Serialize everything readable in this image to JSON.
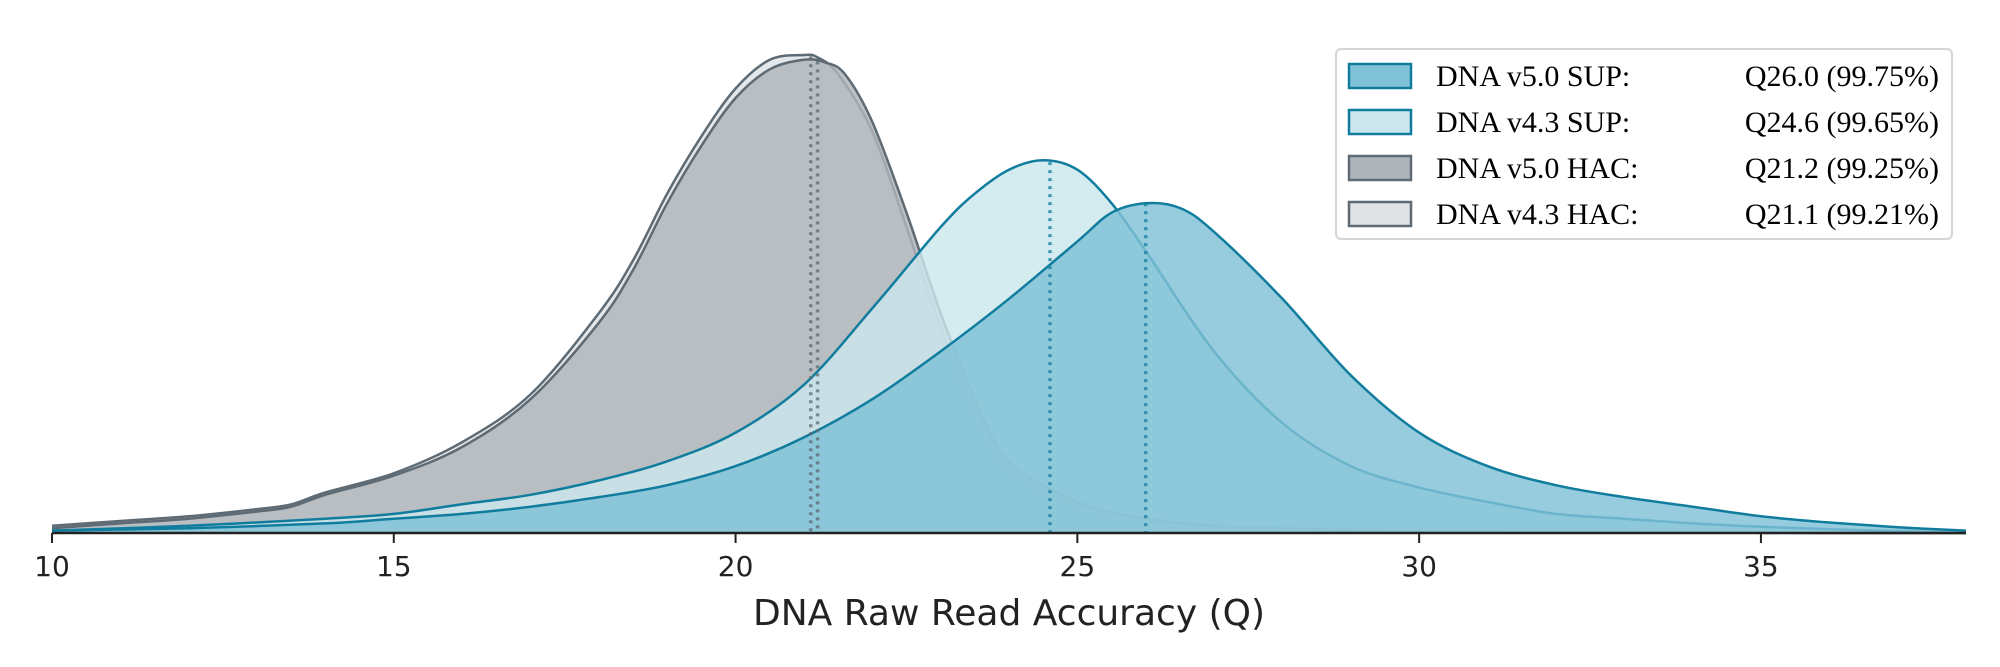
{
  "chart_data": {
    "type": "area",
    "xlabel": "DNA Raw Read Accuracy (Q)",
    "xlim": [
      10,
      38
    ],
    "xticks": [
      "10",
      "15",
      "20",
      "25",
      "30",
      "35"
    ],
    "legend_position": "top-right",
    "grid": false,
    "series": [
      {
        "name": "DNA v4.3 HAC:",
        "stat": "Q21.1 (99.21%)",
        "mean": 21.1,
        "fill": "#dfe3e6",
        "stroke": "#5e6b74",
        "x": [
          10,
          11,
          12,
          13,
          13.5,
          14,
          15,
          16,
          17,
          18,
          18.5,
          19,
          19.5,
          20,
          20.5,
          21,
          21.2,
          21.5,
          22,
          22.5,
          23,
          23.5,
          24,
          25,
          26,
          27,
          28,
          29,
          30,
          32,
          34,
          36,
          38
        ],
        "y": [
          0.015,
          0.025,
          0.035,
          0.05,
          0.06,
          0.085,
          0.125,
          0.19,
          0.29,
          0.46,
          0.57,
          0.71,
          0.83,
          0.93,
          0.99,
          1.0,
          0.995,
          0.96,
          0.84,
          0.64,
          0.43,
          0.26,
          0.14,
          0.06,
          0.03,
          0.015,
          0.01,
          0.006,
          0.004,
          0.002,
          0.001,
          0.0,
          0.0
        ]
      },
      {
        "name": "DNA v5.0 HAC:",
        "stat": "Q21.2 (99.25%)",
        "mean": 21.2,
        "fill": "#aeb4ba",
        "stroke": "#5e6b74",
        "x": [
          10,
          11,
          12,
          13,
          13.5,
          14,
          15,
          16,
          17,
          18,
          18.5,
          19,
          19.5,
          20,
          20.5,
          21,
          21.3,
          21.6,
          22,
          22.5,
          23,
          23.5,
          24,
          25,
          26,
          27,
          28,
          29,
          30,
          32,
          34,
          36,
          38
        ],
        "y": [
          0.01,
          0.02,
          0.03,
          0.045,
          0.055,
          0.08,
          0.12,
          0.18,
          0.28,
          0.44,
          0.55,
          0.69,
          0.81,
          0.91,
          0.97,
          0.99,
          0.985,
          0.96,
          0.86,
          0.67,
          0.46,
          0.28,
          0.15,
          0.065,
          0.03,
          0.015,
          0.01,
          0.006,
          0.004,
          0.002,
          0.001,
          0.0,
          0.0
        ]
      },
      {
        "name": "DNA v4.3 SUP:",
        "stat": "Q24.6 (99.65%)",
        "mean": 24.6,
        "fill": "#cbe6ed",
        "stroke": "#117d9e",
        "x": [
          10,
          12,
          14,
          15,
          16,
          17,
          18,
          19,
          20,
          21,
          22,
          23,
          23.5,
          24,
          24.5,
          25,
          25.5,
          26,
          27,
          28,
          29,
          30,
          31,
          32,
          33,
          34,
          35,
          36,
          37,
          38
        ],
        "y": [
          0.005,
          0.015,
          0.03,
          0.04,
          0.06,
          0.08,
          0.11,
          0.15,
          0.21,
          0.31,
          0.47,
          0.64,
          0.71,
          0.76,
          0.78,
          0.76,
          0.69,
          0.59,
          0.38,
          0.23,
          0.14,
          0.095,
          0.065,
          0.04,
          0.03,
          0.02,
          0.013,
          0.008,
          0.004,
          0.0
        ]
      },
      {
        "name": "DNA v5.0 SUP:",
        "stat": "Q26.0 (99.75%)",
        "mean": 26.0,
        "fill": "#7fc1d5",
        "stroke": "#117d9e",
        "x": [
          10,
          12,
          14,
          15,
          16,
          17,
          18,
          19,
          20,
          21,
          22,
          23,
          24,
          25,
          25.5,
          26,
          26.5,
          27,
          28,
          29,
          30,
          31,
          32,
          33,
          34,
          35,
          36,
          37,
          38
        ],
        "y": [
          0.005,
          0.01,
          0.02,
          0.03,
          0.04,
          0.055,
          0.075,
          0.1,
          0.14,
          0.2,
          0.28,
          0.38,
          0.49,
          0.61,
          0.67,
          0.69,
          0.68,
          0.63,
          0.49,
          0.33,
          0.21,
          0.14,
          0.1,
          0.075,
          0.055,
          0.035,
          0.022,
          0.012,
          0.005
        ]
      }
    ],
    "legend_order": [
      3,
      2,
      1,
      0
    ]
  }
}
